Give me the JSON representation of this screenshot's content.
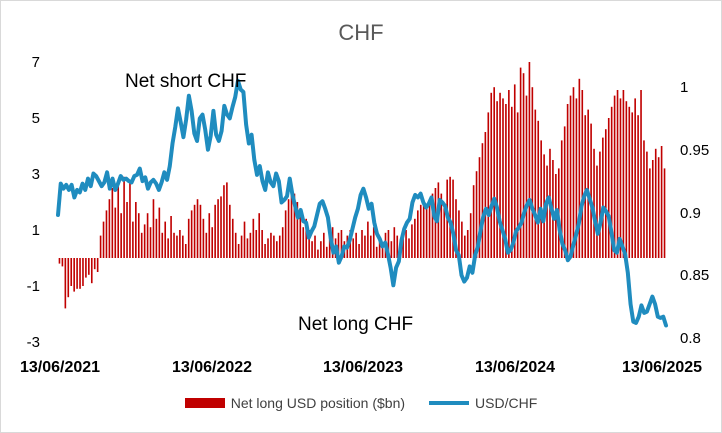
{
  "chart_data": {
    "type": "bar+line",
    "title": "CHF",
    "x_ticks": [
      "13/06/2021",
      "13/06/2022",
      "13/06/2023",
      "13/06/2024",
      "13/06/2025"
    ],
    "y_left": {
      "ticks": [
        "7",
        "5",
        "3",
        "1",
        "-1",
        "-3"
      ],
      "range": [
        -3,
        7
      ]
    },
    "y_right": {
      "ticks": [
        "1",
        "0.95",
        "0.9",
        "0.85",
        "0.8"
      ],
      "range": [
        0.795,
        1.02
      ]
    },
    "annotations": [
      "Net short CHF",
      "Net long CHF"
    ],
    "legend": {
      "position": "bottom"
    },
    "series": [
      {
        "name": "Net long USD position ($bn)",
        "kind": "bar",
        "axis": "left",
        "color": "#c00000",
        "x_range": [
          "13/06/2021",
          "13/06/2025"
        ],
        "values": [
          -0.2,
          -0.3,
          -1.8,
          -1.4,
          -1.0,
          -1.2,
          -1.1,
          -1.1,
          -1.0,
          -0.7,
          -0.6,
          -0.9,
          -0.4,
          -0.5,
          0.8,
          1.3,
          1.7,
          2.1,
          2.5,
          1.8,
          2.7,
          1.6,
          2.9,
          2.0,
          2.7,
          1.3,
          2.0,
          1.6,
          0.9,
          1.2,
          1.6,
          1.1,
          2.1,
          1.4,
          1.8,
          0.9,
          1.3,
          0.7,
          1.5,
          0.9,
          0.8,
          1.0,
          0.8,
          0.5,
          1.4,
          1.7,
          1.9,
          2.1,
          1.9,
          1.4,
          0.9,
          1.6,
          1.1,
          1.9,
          2.1,
          2.2,
          2.6,
          2.7,
          1.9,
          1.4,
          0.9,
          0.5,
          0.8,
          1.3,
          0.7,
          0.9,
          1.4,
          1.0,
          1.6,
          1.0,
          0.5,
          0.7,
          0.9,
          0.8,
          0.6,
          0.8,
          1.1,
          1.7,
          2.1,
          2.4,
          2.3,
          2.0,
          1.7,
          1.1,
          1.4,
          1.0,
          0.6,
          0.8,
          0.3,
          0.6,
          0.9,
          0.4,
          0.8,
          1.1,
          0.7,
          0.9,
          1.0,
          0.6,
          0.8,
          1.0,
          0.7,
          0.9,
          0.5,
          1.0,
          0.8,
          1.3,
          0.8,
          1.1,
          0.4,
          0.7,
          0.5,
          0.9,
          1.0,
          0.6,
          1.1,
          0.8,
          0.5,
          0.8,
          1.0,
          0.7,
          1.2,
          1.4,
          1.7,
          1.9,
          2.0,
          1.8,
          2.1,
          2.3,
          2.5,
          2.7,
          2.3,
          1.8,
          2.8,
          2.9,
          2.8,
          2.1,
          1.7,
          1.3,
          0.8,
          1.0,
          1.6,
          2.6,
          3.1,
          3.6,
          4.1,
          4.5,
          5.2,
          5.9,
          6.1,
          5.6,
          5.9,
          5.7,
          5.5,
          6.0,
          5.4,
          6.2,
          5.2,
          6.8,
          6.6,
          5.8,
          7.0,
          6.1,
          5.3,
          4.9,
          4.2,
          3.7,
          3.3,
          3.9,
          3.5,
          3.0,
          3.2,
          4.2,
          4.7,
          5.5,
          5.8,
          6.1,
          5.7,
          6.4,
          6.0,
          5.1,
          5.3,
          4.8,
          3.9,
          3.3,
          3.8,
          4.3,
          4.6,
          5.0,
          5.4,
          5.8,
          6.0,
          5.7,
          6.0,
          5.6,
          5.4,
          5.2,
          5.7,
          5.1,
          6.0,
          4.2,
          3.8,
          3.2,
          3.5,
          3.9,
          3.6,
          4.0,
          3.2
        ]
      },
      {
        "name": "USD/CHF",
        "kind": "line",
        "axis": "right",
        "color": "#1f8cbf",
        "x_range": [
          "13/06/2021",
          "13/06/2025"
        ],
        "values": [
          0.898,
          0.923,
          0.919,
          0.922,
          0.918,
          0.922,
          0.912,
          0.918,
          0.916,
          0.923,
          0.918,
          0.927,
          0.921,
          0.931,
          0.929,
          0.925,
          0.921,
          0.924,
          0.932,
          0.919,
          0.927,
          0.918,
          0.923,
          0.929,
          0.926,
          0.927,
          0.925,
          0.924,
          0.929,
          0.93,
          0.935,
          0.925,
          0.928,
          0.919,
          0.924,
          0.926,
          0.923,
          0.918,
          0.924,
          0.932,
          0.926,
          0.937,
          0.955,
          0.968,
          0.983,
          0.972,
          0.96,
          0.974,
          0.993,
          0.981,
          0.963,
          0.957,
          0.975,
          0.978,
          0.966,
          0.95,
          0.961,
          0.981,
          0.962,
          0.957,
          0.965,
          0.985,
          0.978,
          0.975,
          0.984,
          0.992,
          1.005,
          0.998,
          0.996,
          0.97,
          0.955,
          0.962,
          0.942,
          0.93,
          0.937,
          0.925,
          0.918,
          0.932,
          0.924,
          0.921,
          0.931,
          0.925,
          0.908,
          0.91,
          0.913,
          0.927,
          0.914,
          0.905,
          0.896,
          0.902,
          0.893,
          0.892,
          0.88,
          0.885,
          0.889,
          0.898,
          0.907,
          0.909,
          0.903,
          0.896,
          0.88,
          0.868,
          0.873,
          0.86,
          0.865,
          0.873,
          0.872,
          0.878,
          0.887,
          0.896,
          0.903,
          0.914,
          0.919,
          0.912,
          0.903,
          0.907,
          0.892,
          0.883,
          0.879,
          0.873,
          0.876,
          0.867,
          0.856,
          0.842,
          0.856,
          0.861,
          0.878,
          0.887,
          0.892,
          0.895,
          0.908,
          0.914,
          0.912,
          0.915,
          0.908,
          0.904,
          0.907,
          0.912,
          0.897,
          0.893,
          0.91,
          0.908,
          0.905,
          0.896,
          0.892,
          0.883,
          0.87,
          0.866,
          0.85,
          0.845,
          0.848,
          0.857,
          0.852,
          0.866,
          0.873,
          0.886,
          0.897,
          0.903,
          0.898,
          0.905,
          0.911,
          0.904,
          0.893,
          0.886,
          0.879,
          0.868,
          0.87,
          0.876,
          0.885,
          0.888,
          0.892,
          0.9,
          0.906,
          0.91,
          0.903,
          0.898,
          0.892,
          0.903,
          0.893,
          0.907,
          0.912,
          0.903,
          0.895,
          0.902,
          0.886,
          0.875,
          0.87,
          0.862,
          0.865,
          0.874,
          0.882,
          0.891,
          0.905,
          0.913,
          0.918,
          0.911,
          0.904,
          0.893,
          0.883,
          0.892,
          0.904,
          0.901,
          0.897,
          0.884,
          0.87,
          0.868,
          0.879,
          0.873,
          0.867,
          0.852,
          0.827,
          0.813,
          0.812,
          0.817,
          0.826,
          0.82,
          0.821,
          0.827,
          0.833,
          0.827,
          0.817,
          0.816,
          0.817,
          0.81
        ]
      }
    ]
  }
}
